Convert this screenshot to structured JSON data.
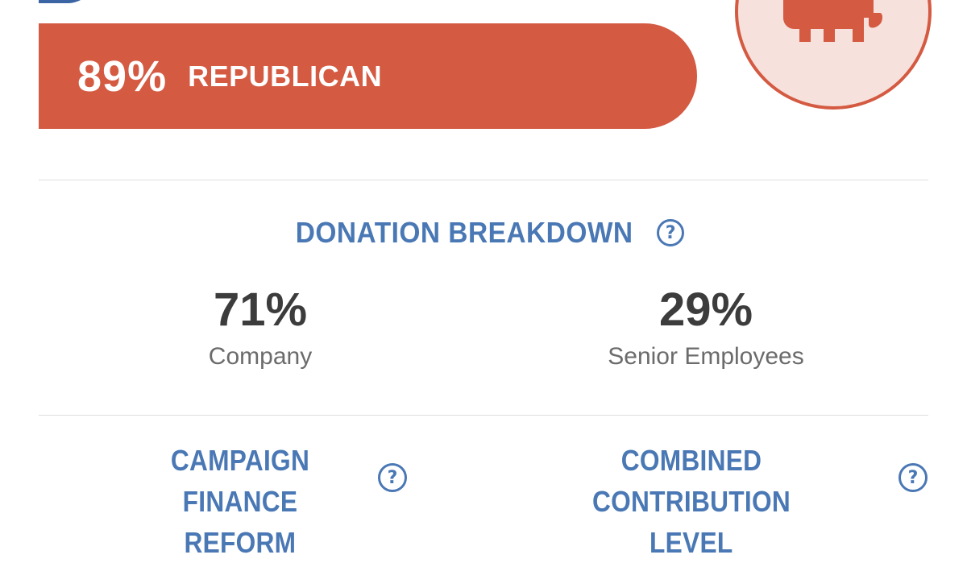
{
  "party": {
    "percent": "89%",
    "name": "REPUBLICAN",
    "share": 0.89,
    "bar_color": "#d45a42",
    "logo_icon": "elephant-icon"
  },
  "donation_breakdown": {
    "heading": "DONATION BREAKDOWN",
    "help_icon": "?",
    "company": {
      "value": "71%",
      "label": "Company"
    },
    "senior_employees": {
      "value": "29%",
      "label": "Senior Employees"
    }
  },
  "campaign_finance_reform": {
    "line1": "CAMPAIGN FINANCE",
    "line2": "REFORM",
    "help_icon": "?"
  },
  "combined_contribution_level": {
    "line1": "COMBINED CONTRIBUTION",
    "line2": "LEVEL",
    "help_icon": "?"
  },
  "colors": {
    "accent_blue": "#4a78b5",
    "republican_red": "#d45a42",
    "logo_background": "#f7e1dc",
    "stat_text": "#3c3c3c",
    "label_text": "#6b6b6b"
  }
}
